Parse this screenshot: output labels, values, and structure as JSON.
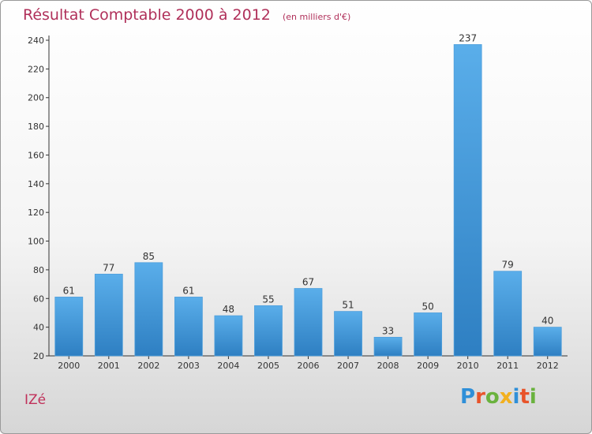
{
  "header": {
    "title": "Résultat Comptable 2000 à 2012",
    "unit": "(en milliers d'€)"
  },
  "footer": {
    "commune": "IZé",
    "logo_letters": [
      {
        "ch": "P",
        "color": "#2f8fd8"
      },
      {
        "ch": "r",
        "color": "#e8542a"
      },
      {
        "ch": "o",
        "color": "#6ab23e"
      },
      {
        "ch": "x",
        "color": "#f2b01e"
      },
      {
        "ch": "i",
        "color": "#2f8fd8"
      },
      {
        "ch": "t",
        "color": "#e8542a"
      },
      {
        "ch": "i",
        "color": "#6ab23e"
      }
    ]
  },
  "colors": {
    "title": "#b0305a",
    "bar_top": "#5aaeea",
    "bar_bottom": "#2e7fc2",
    "axis": "#333333"
  },
  "chart_data": {
    "type": "bar",
    "title": "Résultat Comptable 2000 à 2012",
    "subtitle": "(en milliers d'€)",
    "xlabel": "",
    "ylabel": "",
    "categories": [
      "2000",
      "2001",
      "2002",
      "2003",
      "2004",
      "2005",
      "2006",
      "2007",
      "2008",
      "2009",
      "2010",
      "2011",
      "2012"
    ],
    "values": [
      61,
      77,
      85,
      61,
      48,
      55,
      67,
      51,
      33,
      50,
      237,
      79,
      40
    ],
    "ylim": [
      20,
      240
    ],
    "yticks": [
      20,
      40,
      60,
      80,
      100,
      120,
      140,
      160,
      180,
      200,
      220,
      240
    ],
    "grid": false,
    "legend": "none"
  }
}
